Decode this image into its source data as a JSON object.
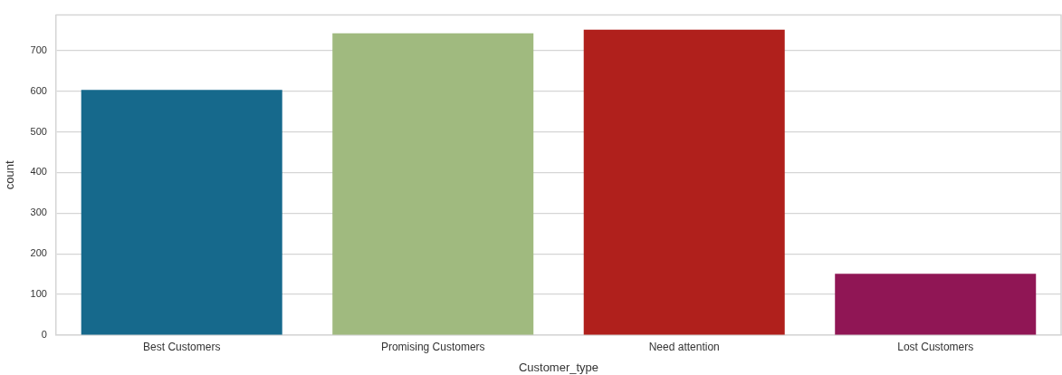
{
  "chart_data": {
    "type": "bar",
    "xlabel": "Customer_type",
    "ylabel": "count",
    "categories": [
      "Best Customers",
      "Promising Customers",
      "Need attention",
      "Lost Customers"
    ],
    "values": [
      603,
      742,
      751,
      151
    ],
    "colors": [
      "#16698c",
      "#a0ba7f",
      "#b0201c",
      "#901655"
    ],
    "ylim": [
      0,
      787
    ],
    "yticks": [
      0,
      100,
      200,
      300,
      400,
      500,
      600,
      700
    ],
    "grid": "y",
    "legend": false
  }
}
